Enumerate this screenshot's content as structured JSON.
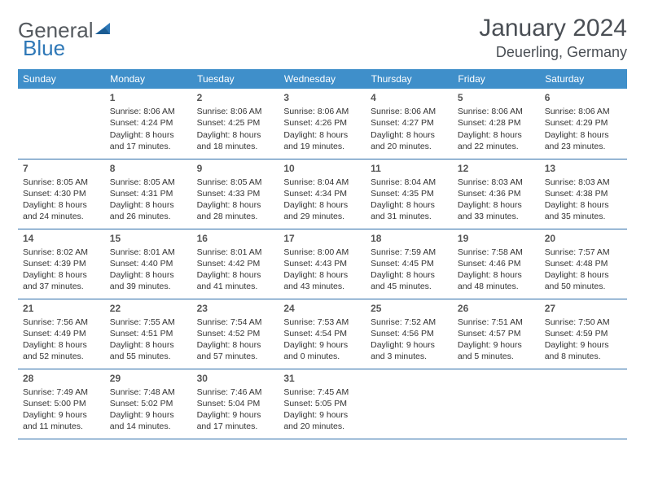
{
  "logo": {
    "general": "General",
    "blue": "Blue"
  },
  "title": "January 2024",
  "location": "Deuerling, Germany",
  "colors": {
    "header_bg": "#3f8fca",
    "header_text": "#ffffff",
    "row_border": "#2d6da9",
    "title_color": "#4a4f55",
    "logo_gray": "#555a5f",
    "logo_blue": "#2f78b7",
    "page_bg": "#ffffff"
  },
  "day_headers": [
    "Sunday",
    "Monday",
    "Tuesday",
    "Wednesday",
    "Thursday",
    "Friday",
    "Saturday"
  ],
  "weeks": [
    [
      {
        "n": "",
        "sunrise": "",
        "sunset": "",
        "daylight": ""
      },
      {
        "n": "1",
        "sunrise": "Sunrise: 8:06 AM",
        "sunset": "Sunset: 4:24 PM",
        "daylight": "Daylight: 8 hours and 17 minutes."
      },
      {
        "n": "2",
        "sunrise": "Sunrise: 8:06 AM",
        "sunset": "Sunset: 4:25 PM",
        "daylight": "Daylight: 8 hours and 18 minutes."
      },
      {
        "n": "3",
        "sunrise": "Sunrise: 8:06 AM",
        "sunset": "Sunset: 4:26 PM",
        "daylight": "Daylight: 8 hours and 19 minutes."
      },
      {
        "n": "4",
        "sunrise": "Sunrise: 8:06 AM",
        "sunset": "Sunset: 4:27 PM",
        "daylight": "Daylight: 8 hours and 20 minutes."
      },
      {
        "n": "5",
        "sunrise": "Sunrise: 8:06 AM",
        "sunset": "Sunset: 4:28 PM",
        "daylight": "Daylight: 8 hours and 22 minutes."
      },
      {
        "n": "6",
        "sunrise": "Sunrise: 8:06 AM",
        "sunset": "Sunset: 4:29 PM",
        "daylight": "Daylight: 8 hours and 23 minutes."
      }
    ],
    [
      {
        "n": "7",
        "sunrise": "Sunrise: 8:05 AM",
        "sunset": "Sunset: 4:30 PM",
        "daylight": "Daylight: 8 hours and 24 minutes."
      },
      {
        "n": "8",
        "sunrise": "Sunrise: 8:05 AM",
        "sunset": "Sunset: 4:31 PM",
        "daylight": "Daylight: 8 hours and 26 minutes."
      },
      {
        "n": "9",
        "sunrise": "Sunrise: 8:05 AM",
        "sunset": "Sunset: 4:33 PM",
        "daylight": "Daylight: 8 hours and 28 minutes."
      },
      {
        "n": "10",
        "sunrise": "Sunrise: 8:04 AM",
        "sunset": "Sunset: 4:34 PM",
        "daylight": "Daylight: 8 hours and 29 minutes."
      },
      {
        "n": "11",
        "sunrise": "Sunrise: 8:04 AM",
        "sunset": "Sunset: 4:35 PM",
        "daylight": "Daylight: 8 hours and 31 minutes."
      },
      {
        "n": "12",
        "sunrise": "Sunrise: 8:03 AM",
        "sunset": "Sunset: 4:36 PM",
        "daylight": "Daylight: 8 hours and 33 minutes."
      },
      {
        "n": "13",
        "sunrise": "Sunrise: 8:03 AM",
        "sunset": "Sunset: 4:38 PM",
        "daylight": "Daylight: 8 hours and 35 minutes."
      }
    ],
    [
      {
        "n": "14",
        "sunrise": "Sunrise: 8:02 AM",
        "sunset": "Sunset: 4:39 PM",
        "daylight": "Daylight: 8 hours and 37 minutes."
      },
      {
        "n": "15",
        "sunrise": "Sunrise: 8:01 AM",
        "sunset": "Sunset: 4:40 PM",
        "daylight": "Daylight: 8 hours and 39 minutes."
      },
      {
        "n": "16",
        "sunrise": "Sunrise: 8:01 AM",
        "sunset": "Sunset: 4:42 PM",
        "daylight": "Daylight: 8 hours and 41 minutes."
      },
      {
        "n": "17",
        "sunrise": "Sunrise: 8:00 AM",
        "sunset": "Sunset: 4:43 PM",
        "daylight": "Daylight: 8 hours and 43 minutes."
      },
      {
        "n": "18",
        "sunrise": "Sunrise: 7:59 AM",
        "sunset": "Sunset: 4:45 PM",
        "daylight": "Daylight: 8 hours and 45 minutes."
      },
      {
        "n": "19",
        "sunrise": "Sunrise: 7:58 AM",
        "sunset": "Sunset: 4:46 PM",
        "daylight": "Daylight: 8 hours and 48 minutes."
      },
      {
        "n": "20",
        "sunrise": "Sunrise: 7:57 AM",
        "sunset": "Sunset: 4:48 PM",
        "daylight": "Daylight: 8 hours and 50 minutes."
      }
    ],
    [
      {
        "n": "21",
        "sunrise": "Sunrise: 7:56 AM",
        "sunset": "Sunset: 4:49 PM",
        "daylight": "Daylight: 8 hours and 52 minutes."
      },
      {
        "n": "22",
        "sunrise": "Sunrise: 7:55 AM",
        "sunset": "Sunset: 4:51 PM",
        "daylight": "Daylight: 8 hours and 55 minutes."
      },
      {
        "n": "23",
        "sunrise": "Sunrise: 7:54 AM",
        "sunset": "Sunset: 4:52 PM",
        "daylight": "Daylight: 8 hours and 57 minutes."
      },
      {
        "n": "24",
        "sunrise": "Sunrise: 7:53 AM",
        "sunset": "Sunset: 4:54 PM",
        "daylight": "Daylight: 9 hours and 0 minutes."
      },
      {
        "n": "25",
        "sunrise": "Sunrise: 7:52 AM",
        "sunset": "Sunset: 4:56 PM",
        "daylight": "Daylight: 9 hours and 3 minutes."
      },
      {
        "n": "26",
        "sunrise": "Sunrise: 7:51 AM",
        "sunset": "Sunset: 4:57 PM",
        "daylight": "Daylight: 9 hours and 5 minutes."
      },
      {
        "n": "27",
        "sunrise": "Sunrise: 7:50 AM",
        "sunset": "Sunset: 4:59 PM",
        "daylight": "Daylight: 9 hours and 8 minutes."
      }
    ],
    [
      {
        "n": "28",
        "sunrise": "Sunrise: 7:49 AM",
        "sunset": "Sunset: 5:00 PM",
        "daylight": "Daylight: 9 hours and 11 minutes."
      },
      {
        "n": "29",
        "sunrise": "Sunrise: 7:48 AM",
        "sunset": "Sunset: 5:02 PM",
        "daylight": "Daylight: 9 hours and 14 minutes."
      },
      {
        "n": "30",
        "sunrise": "Sunrise: 7:46 AM",
        "sunset": "Sunset: 5:04 PM",
        "daylight": "Daylight: 9 hours and 17 minutes."
      },
      {
        "n": "31",
        "sunrise": "Sunrise: 7:45 AM",
        "sunset": "Sunset: 5:05 PM",
        "daylight": "Daylight: 9 hours and 20 minutes."
      },
      {
        "n": "",
        "sunrise": "",
        "sunset": "",
        "daylight": ""
      },
      {
        "n": "",
        "sunrise": "",
        "sunset": "",
        "daylight": ""
      },
      {
        "n": "",
        "sunrise": "",
        "sunset": "",
        "daylight": ""
      }
    ]
  ]
}
